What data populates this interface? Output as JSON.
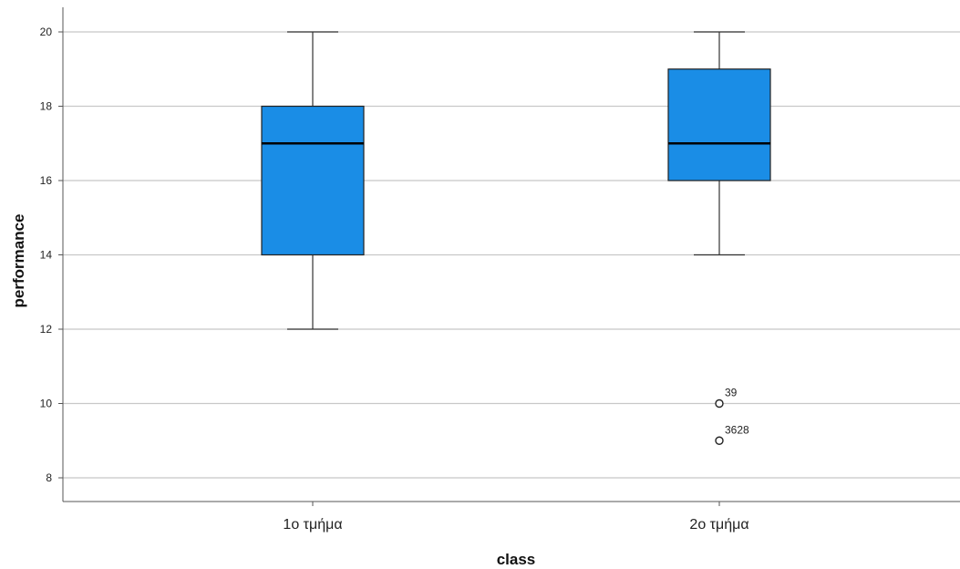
{
  "chart_data": {
    "type": "boxplot",
    "title": "",
    "xlabel": "class",
    "ylabel": "performance",
    "categories": [
      "1ο τμήμα",
      "2ο τμήμα"
    ],
    "boxes": [
      {
        "category": "1ο τμήμα",
        "whisker_low": 12,
        "q1": 14,
        "median": 17,
        "q3": 18,
        "whisker_high": 20,
        "outliers": []
      },
      {
        "category": "2ο τμήμα",
        "whisker_low": 14,
        "q1": 16,
        "median": 17,
        "q3": 19,
        "whisker_high": 20,
        "outliers": [
          {
            "value": 10,
            "label": "39"
          },
          {
            "value": 9,
            "label": "3628"
          }
        ]
      }
    ],
    "yticks": [
      "8",
      "10",
      "12",
      "14",
      "16",
      "18",
      "20"
    ],
    "ylim": [
      7.4,
      20.7
    ],
    "grid": true,
    "box_color": "#1a8de6",
    "legend": "none"
  }
}
